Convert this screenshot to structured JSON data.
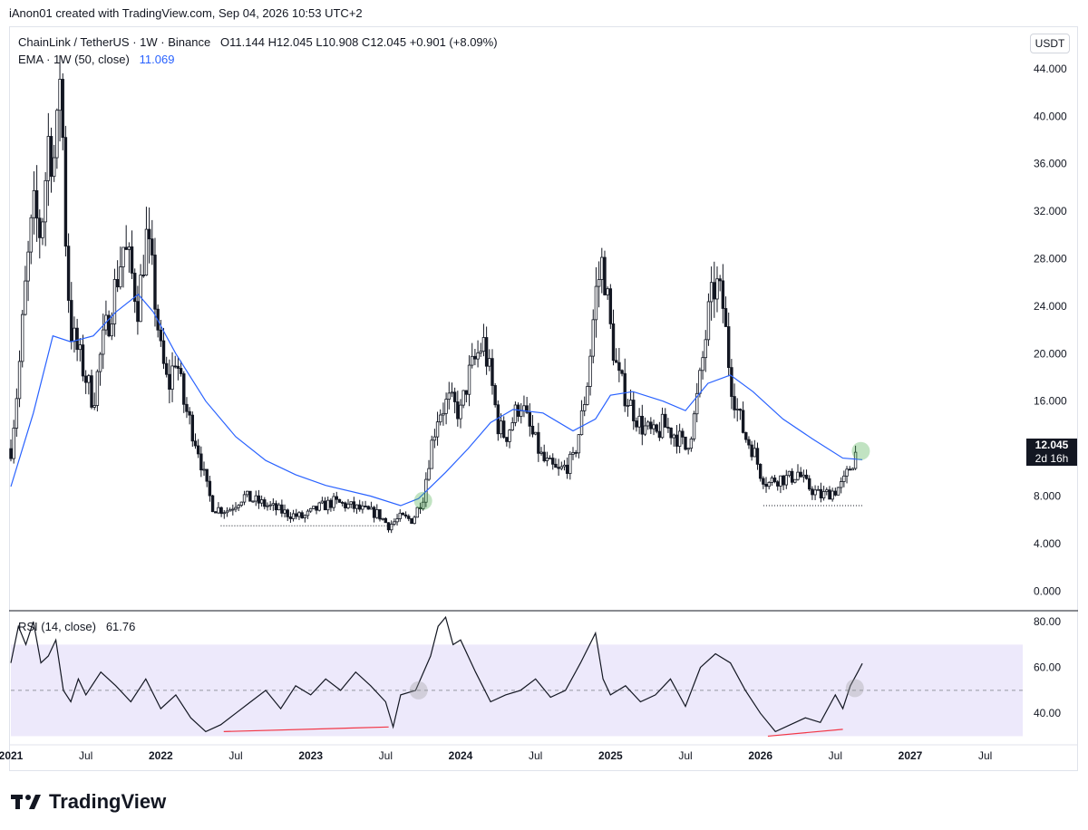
{
  "header": {
    "attribution": "iAnon01 created with TradingView.com, Sep 04, 2026 10:53 UTC+2"
  },
  "legend": {
    "symbol": "ChainLink / TetherUS · 1W · Binance",
    "ohlc": "O11.144  H12.045  L10.908  C12.045  +0.901 (+8.09%)",
    "ema_label": "EMA · 1W (50, close)",
    "ema_value": "11.069",
    "rsi_label": "RSI (14, close)",
    "rsi_value": "61.76"
  },
  "currency_button": "USDT",
  "price_tag": {
    "price": "12.045",
    "countdown": "2d 16h"
  },
  "footer": {
    "brand": "TradingView"
  },
  "colors": {
    "candle": "#131722",
    "ema": "#2962ff",
    "rsi_band": "#ede9fb",
    "divergence": "#f23645",
    "highlight": "#4caf50"
  },
  "chart_data": [
    {
      "type": "candlestick",
      "y_ticks": [
        "44.000",
        "40.000",
        "36.000",
        "32.000",
        "28.000",
        "24.000",
        "20.000",
        "16.000",
        "12.000",
        "8.000",
        "4.000",
        "0.000"
      ],
      "ylim": [
        -1.5,
        47.5
      ],
      "x_ticks": [
        "2021",
        "Jul",
        "2022",
        "Jul",
        "2023",
        "Jul",
        "2024",
        "Jul",
        "2025",
        "Jul",
        "2026",
        "Jul",
        "2027",
        "Jul"
      ],
      "close_path": [
        [
          2021.0,
          12
        ],
        [
          2021.05,
          18
        ],
        [
          2021.1,
          26
        ],
        [
          2021.15,
          32
        ],
        [
          2021.2,
          30
        ],
        [
          2021.25,
          38
        ],
        [
          2021.3,
          36
        ],
        [
          2021.33,
          45
        ],
        [
          2021.37,
          28
        ],
        [
          2021.4,
          22
        ],
        [
          2021.45,
          20
        ],
        [
          2021.5,
          18
        ],
        [
          2021.55,
          16
        ],
        [
          2021.6,
          20
        ],
        [
          2021.67,
          24
        ],
        [
          2021.75,
          29
        ],
        [
          2021.8,
          27
        ],
        [
          2021.85,
          24
        ],
        [
          2021.9,
          30
        ],
        [
          2021.95,
          26
        ],
        [
          2022.0,
          20
        ],
        [
          2022.05,
          17
        ],
        [
          2022.1,
          20
        ],
        [
          2022.15,
          16
        ],
        [
          2022.2,
          14
        ],
        [
          2022.25,
          12
        ],
        [
          2022.3,
          9
        ],
        [
          2022.35,
          7
        ],
        [
          2022.45,
          6.8
        ],
        [
          2022.55,
          8
        ],
        [
          2022.65,
          7.5
        ],
        [
          2022.75,
          7
        ],
        [
          2022.85,
          6.5
        ],
        [
          2022.95,
          6.2
        ],
        [
          2023.05,
          7
        ],
        [
          2023.15,
          7.5
        ],
        [
          2023.25,
          7.2
        ],
        [
          2023.35,
          6.8
        ],
        [
          2023.45,
          6.5
        ],
        [
          2023.52,
          5.5
        ],
        [
          2023.6,
          6.2
        ],
        [
          2023.68,
          6.0
        ],
        [
          2023.75,
          8
        ],
        [
          2023.8,
          12
        ],
        [
          2023.85,
          15
        ],
        [
          2023.92,
          16
        ],
        [
          2024.0,
          15
        ],
        [
          2024.05,
          18
        ],
        [
          2024.15,
          21
        ],
        [
          2024.2,
          18
        ],
        [
          2024.25,
          14
        ],
        [
          2024.3,
          13
        ],
        [
          2024.4,
          16
        ],
        [
          2024.45,
          14
        ],
        [
          2024.55,
          11
        ],
        [
          2024.65,
          10
        ],
        [
          2024.75,
          11
        ],
        [
          2024.8,
          14
        ],
        [
          2024.85,
          18
        ],
        [
          2024.9,
          25
        ],
        [
          2024.95,
          28
        ],
        [
          2025.0,
          22
        ],
        [
          2025.05,
          18
        ],
        [
          2025.12,
          16
        ],
        [
          2025.2,
          14
        ],
        [
          2025.3,
          13
        ],
        [
          2025.35,
          14
        ],
        [
          2025.45,
          13
        ],
        [
          2025.5,
          12
        ],
        [
          2025.55,
          14
        ],
        [
          2025.6,
          18
        ],
        [
          2025.65,
          23
        ],
        [
          2025.7,
          26
        ],
        [
          2025.75,
          24
        ],
        [
          2025.8,
          18
        ],
        [
          2025.85,
          15
        ],
        [
          2025.9,
          13
        ],
        [
          2025.95,
          12
        ],
        [
          2026.0,
          10
        ],
        [
          2026.05,
          9
        ],
        [
          2026.1,
          9.5
        ],
        [
          2026.2,
          9.5
        ],
        [
          2026.25,
          10
        ],
        [
          2026.3,
          9
        ],
        [
          2026.4,
          8
        ],
        [
          2026.5,
          8.5
        ],
        [
          2026.55,
          9
        ],
        [
          2026.6,
          10.5
        ],
        [
          2026.65,
          12.045
        ]
      ],
      "ema_path": [
        [
          2021.0,
          8.8
        ],
        [
          2021.15,
          15
        ],
        [
          2021.28,
          21.5
        ],
        [
          2021.4,
          21
        ],
        [
          2021.55,
          21.5
        ],
        [
          2021.7,
          23.5
        ],
        [
          2021.85,
          25
        ],
        [
          2021.95,
          23.5
        ],
        [
          2022.1,
          20
        ],
        [
          2022.3,
          16
        ],
        [
          2022.5,
          13
        ],
        [
          2022.7,
          11
        ],
        [
          2022.9,
          9.8
        ],
        [
          2023.1,
          8.9
        ],
        [
          2023.4,
          8.0
        ],
        [
          2023.6,
          7.2
        ],
        [
          2023.72,
          7.8
        ],
        [
          2023.9,
          10
        ],
        [
          2024.05,
          12
        ],
        [
          2024.2,
          14.2
        ],
        [
          2024.35,
          15.3
        ],
        [
          2024.55,
          15.0
        ],
        [
          2024.75,
          13.5
        ],
        [
          2024.9,
          14.5
        ],
        [
          2025.0,
          16.5
        ],
        [
          2025.15,
          16.8
        ],
        [
          2025.35,
          16.0
        ],
        [
          2025.5,
          15.2
        ],
        [
          2025.65,
          17.5
        ],
        [
          2025.8,
          18.2
        ],
        [
          2025.95,
          16.8
        ],
        [
          2026.15,
          14.5
        ],
        [
          2026.35,
          12.8
        ],
        [
          2026.55,
          11.2
        ],
        [
          2026.68,
          11.069
        ]
      ],
      "support_lines": [
        {
          "from": [
            2022.4,
            5.5
          ],
          "to": [
            2023.55,
            5.5
          ]
        },
        {
          "from": [
            2026.02,
            7.2
          ],
          "to": [
            2026.68,
            7.2
          ]
        }
      ],
      "highlights": [
        [
          2023.75,
          7.6
        ],
        [
          2026.67,
          11.8
        ]
      ]
    },
    {
      "type": "line",
      "name": "RSI (14, close)",
      "y_ticks": [
        "80.00",
        "60.00",
        "40.00"
      ],
      "ylim": [
        27,
        84
      ],
      "band": [
        30,
        70
      ],
      "midline": 50,
      "x": [
        2021.0,
        2021.05,
        2021.1,
        2021.15,
        2021.2,
        2021.25,
        2021.3,
        2021.35,
        2021.4,
        2021.45,
        2021.5,
        2021.6,
        2021.7,
        2021.8,
        2021.9,
        2022.0,
        2022.1,
        2022.2,
        2022.3,
        2022.4,
        2022.5,
        2022.6,
        2022.7,
        2022.8,
        2022.9,
        2023.0,
        2023.1,
        2023.2,
        2023.3,
        2023.4,
        2023.5,
        2023.55,
        2023.6,
        2023.7,
        2023.8,
        2023.85,
        2023.9,
        2023.95,
        2024.0,
        2024.1,
        2024.2,
        2024.3,
        2024.4,
        2024.5,
        2024.6,
        2024.7,
        2024.8,
        2024.9,
        2024.95,
        2025.0,
        2025.1,
        2025.2,
        2025.3,
        2025.4,
        2025.5,
        2025.6,
        2025.7,
        2025.8,
        2025.9,
        2026.0,
        2026.1,
        2026.2,
        2026.3,
        2026.4,
        2026.5,
        2026.55,
        2026.6,
        2026.65,
        2026.68
      ],
      "values": [
        62,
        78,
        70,
        80,
        62,
        65,
        72,
        50,
        45,
        55,
        48,
        58,
        52,
        45,
        55,
        42,
        48,
        38,
        32,
        35,
        40,
        45,
        50,
        42,
        52,
        48,
        55,
        50,
        58,
        52,
        45,
        34,
        48,
        50,
        65,
        78,
        82,
        70,
        72,
        58,
        45,
        48,
        50,
        55,
        47,
        50,
        62,
        75,
        55,
        48,
        52,
        45,
        48,
        55,
        43,
        60,
        66,
        62,
        50,
        40,
        32,
        35,
        38,
        36,
        48,
        42,
        52,
        58,
        61.76
      ]
    }
  ]
}
